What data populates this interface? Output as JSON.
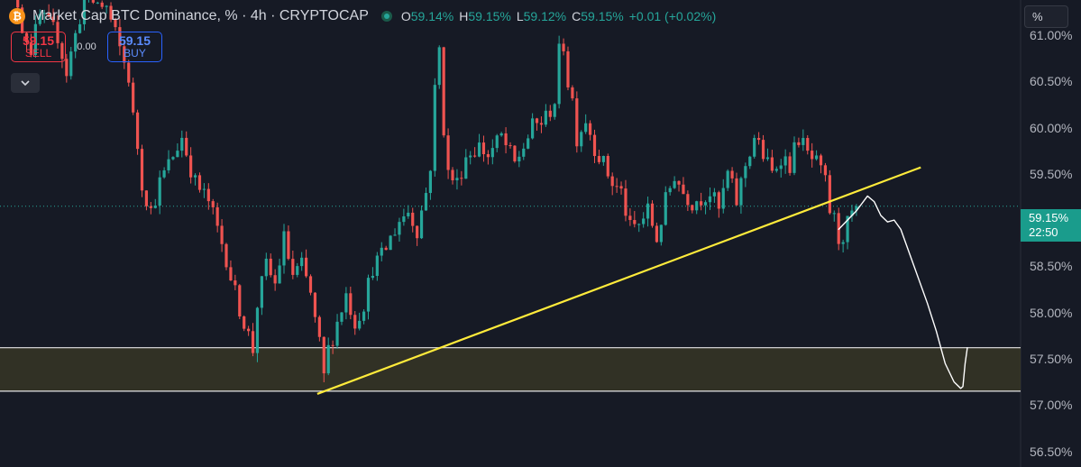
{
  "header": {
    "title": "Market Cap BTC Dominance, % · 4h · CRYPTOCAP",
    "btc_symbol": "₿",
    "ohlc": {
      "o_label": "O",
      "o_value": "59.14%",
      "h_label": "H",
      "h_value": "59.15%",
      "l_label": "L",
      "l_value": "59.12%",
      "c_label": "C",
      "c_value": "59.15%",
      "change": "+0.01 (+0.02%)"
    }
  },
  "trade": {
    "sell_price": "59.15",
    "sell_label": "SELL",
    "spread": "0.00",
    "buy_price": "59.15",
    "buy_label": "BUY"
  },
  "scale_button": "%",
  "price_tag": {
    "price": "59.15%",
    "countdown": "22:50"
  },
  "colors": {
    "background": "#161a25",
    "up": "#26a69a",
    "down": "#ef5350",
    "trendline": "#ffeb3b",
    "zone_fill": "#3b3a26",
    "zone_border": "#e6e6e6",
    "price_line": "#26a69a",
    "hand_drawn": "#ffffff"
  },
  "chart_data": {
    "type": "candlestick",
    "title": "Market Cap BTC Dominance, % · 4h · CRYPTOCAP",
    "y_axis": {
      "position": "right",
      "range": [
        56.33,
        61.38
      ],
      "ticks": [
        "61.00%",
        "60.50%",
        "60.00%",
        "59.50%",
        "59.00%",
        "58.50%",
        "58.00%",
        "57.50%",
        "57.00%",
        "56.50%"
      ],
      "tick_values": [
        61.0,
        60.5,
        60.0,
        59.5,
        59.0,
        58.5,
        58.0,
        57.5,
        57.0,
        56.5
      ]
    },
    "x_range": [
      0,
      230
    ],
    "price_path": [
      [
        0,
        61.9
      ],
      [
        2,
        61.5
      ],
      [
        3,
        61.6
      ],
      [
        5,
        61.1
      ],
      [
        7,
        60.85
      ],
      [
        9,
        61.2
      ],
      [
        13,
        61.0
      ],
      [
        15,
        60.6
      ],
      [
        17,
        61.0
      ],
      [
        19,
        61.4
      ],
      [
        24,
        61.3
      ],
      [
        26,
        61.0
      ],
      [
        29,
        60.55
      ],
      [
        30,
        60.1
      ],
      [
        31,
        59.8
      ],
      [
        32,
        59.4
      ],
      [
        34,
        59.1
      ],
      [
        36,
        59.4
      ],
      [
        39,
        59.7
      ],
      [
        41,
        59.9
      ],
      [
        44,
        59.4
      ],
      [
        47,
        59.2
      ],
      [
        49,
        58.9
      ],
      [
        51,
        58.6
      ],
      [
        53,
        58.2
      ],
      [
        55,
        57.9
      ],
      [
        57,
        57.6
      ],
      [
        58,
        58.1
      ],
      [
        60,
        58.5
      ],
      [
        62,
        58.3
      ],
      [
        64,
        58.8
      ],
      [
        66,
        58.4
      ],
      [
        68,
        58.5
      ],
      [
        70,
        58.2
      ],
      [
        71,
        57.9
      ],
      [
        72,
        57.65
      ],
      [
        73,
        57.3
      ],
      [
        74,
        57.6
      ],
      [
        76,
        57.9
      ],
      [
        78,
        58.2
      ],
      [
        80,
        57.9
      ],
      [
        82,
        58.1
      ],
      [
        84,
        58.5
      ],
      [
        86,
        58.6
      ],
      [
        88,
        58.8
      ],
      [
        90,
        59.0
      ],
      [
        92,
        59.1
      ],
      [
        94,
        58.9
      ],
      [
        96,
        59.3
      ],
      [
        97,
        59.6
      ],
      [
        98,
        60.4
      ],
      [
        99,
        60.85
      ],
      [
        100,
        60.0
      ],
      [
        101,
        59.5
      ],
      [
        103,
        59.4
      ],
      [
        105,
        59.7
      ],
      [
        108,
        59.8
      ],
      [
        110,
        59.7
      ],
      [
        113,
        59.9
      ],
      [
        116,
        59.6
      ],
      [
        118,
        59.8
      ],
      [
        120,
        60.0
      ],
      [
        123,
        60.1
      ],
      [
        125,
        60.3
      ],
      [
        126,
        60.8
      ],
      [
        127,
        60.9
      ],
      [
        128,
        60.5
      ],
      [
        129,
        60.3
      ],
      [
        130,
        59.9
      ],
      [
        132,
        60.1
      ],
      [
        134,
        59.8
      ],
      [
        136,
        59.6
      ],
      [
        138,
        59.4
      ],
      [
        140,
        59.3
      ],
      [
        142,
        58.9
      ],
      [
        144,
        58.95
      ],
      [
        146,
        59.1
      ],
      [
        148,
        58.8
      ],
      [
        150,
        59.2
      ],
      [
        152,
        59.5
      ],
      [
        154,
        59.3
      ],
      [
        156,
        59.2
      ],
      [
        158,
        59.25
      ],
      [
        160,
        59.3
      ],
      [
        162,
        59.1
      ],
      [
        164,
        59.5
      ],
      [
        166,
        59.2
      ],
      [
        168,
        59.6
      ],
      [
        170,
        59.9
      ],
      [
        172,
        59.7
      ],
      [
        174,
        59.5
      ],
      [
        176,
        59.7
      ],
      [
        178,
        59.6
      ],
      [
        180,
        59.9
      ],
      [
        182,
        59.7
      ],
      [
        184,
        59.6
      ],
      [
        186,
        59.4
      ],
      [
        187,
        59.1
      ],
      [
        188,
        59.0
      ],
      [
        189,
        58.8
      ],
      [
        190,
        58.85
      ],
      [
        191,
        58.95
      ],
      [
        192,
        59.05
      ],
      [
        193,
        59.15
      ]
    ],
    "last_price": 59.15,
    "annotations": {
      "trendline": {
        "x1": 71.5,
        "y1": 57.12,
        "x2": 207.5,
        "y2": 59.57
      },
      "support_zone": {
        "y_top": 57.62,
        "y_bottom": 57.15
      },
      "projection_path": [
        [
          189,
          58.9
        ],
        [
          193,
          59.1
        ],
        [
          195.5,
          59.26
        ],
        [
          197,
          59.2
        ],
        [
          198.5,
          59.05
        ],
        [
          200,
          58.98
        ],
        [
          201.5,
          59.0
        ],
        [
          203,
          58.9
        ],
        [
          206,
          58.5
        ],
        [
          209,
          58.1
        ],
        [
          211,
          57.8
        ],
        [
          213,
          57.45
        ],
        [
          215,
          57.25
        ],
        [
          216.5,
          57.18
        ],
        [
          217,
          57.2
        ],
        [
          217.5,
          57.45
        ],
        [
          218,
          57.62
        ]
      ]
    }
  }
}
